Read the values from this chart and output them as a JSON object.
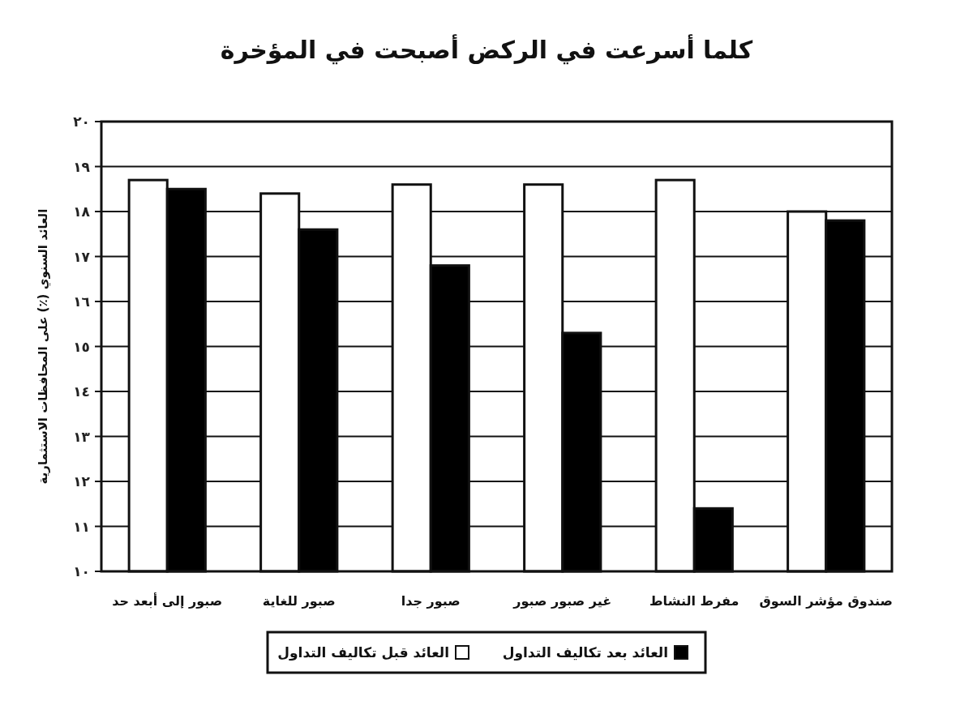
{
  "chart_data": {
    "type": "bar",
    "title": "كلما أسرعت في الركض أصبحت في المؤخرة",
    "ylabel": "العائد السنوي (٪) على المحافظات الاستثمارية",
    "categories": [
      "صبور إلى أبعد حد",
      "صبور للغاية",
      "صبور جدا",
      "غير صبور صبور",
      "مفرط النشاط",
      "صندوق مؤشر السوق"
    ],
    "series": [
      {
        "name": "العائد قبل تكاليف التداول",
        "color": "#ffffff",
        "values": [
          18.7,
          18.4,
          18.6,
          18.6,
          18.7,
          18.0
        ]
      },
      {
        "name": "العائد بعد تكاليف التداول",
        "color": "#000000",
        "values": [
          18.5,
          17.6,
          16.8,
          15.3,
          11.4,
          17.8
        ]
      }
    ],
    "ylim": [
      10,
      20
    ],
    "yticks": [
      {
        "value": 10,
        "label": "١٠"
      },
      {
        "value": 11,
        "label": "١١"
      },
      {
        "value": 12,
        "label": "١٢"
      },
      {
        "value": 13,
        "label": "١٣"
      },
      {
        "value": 14,
        "label": "١٤"
      },
      {
        "value": 15,
        "label": "١٥"
      },
      {
        "value": 16,
        "label": "١٦"
      },
      {
        "value": 17,
        "label": "١٧"
      },
      {
        "value": 18,
        "label": "١٨"
      },
      {
        "value": 19,
        "label": "١٩"
      },
      {
        "value": 20,
        "label": "٢٠"
      }
    ],
    "grid": "y",
    "legend": "bottom"
  }
}
